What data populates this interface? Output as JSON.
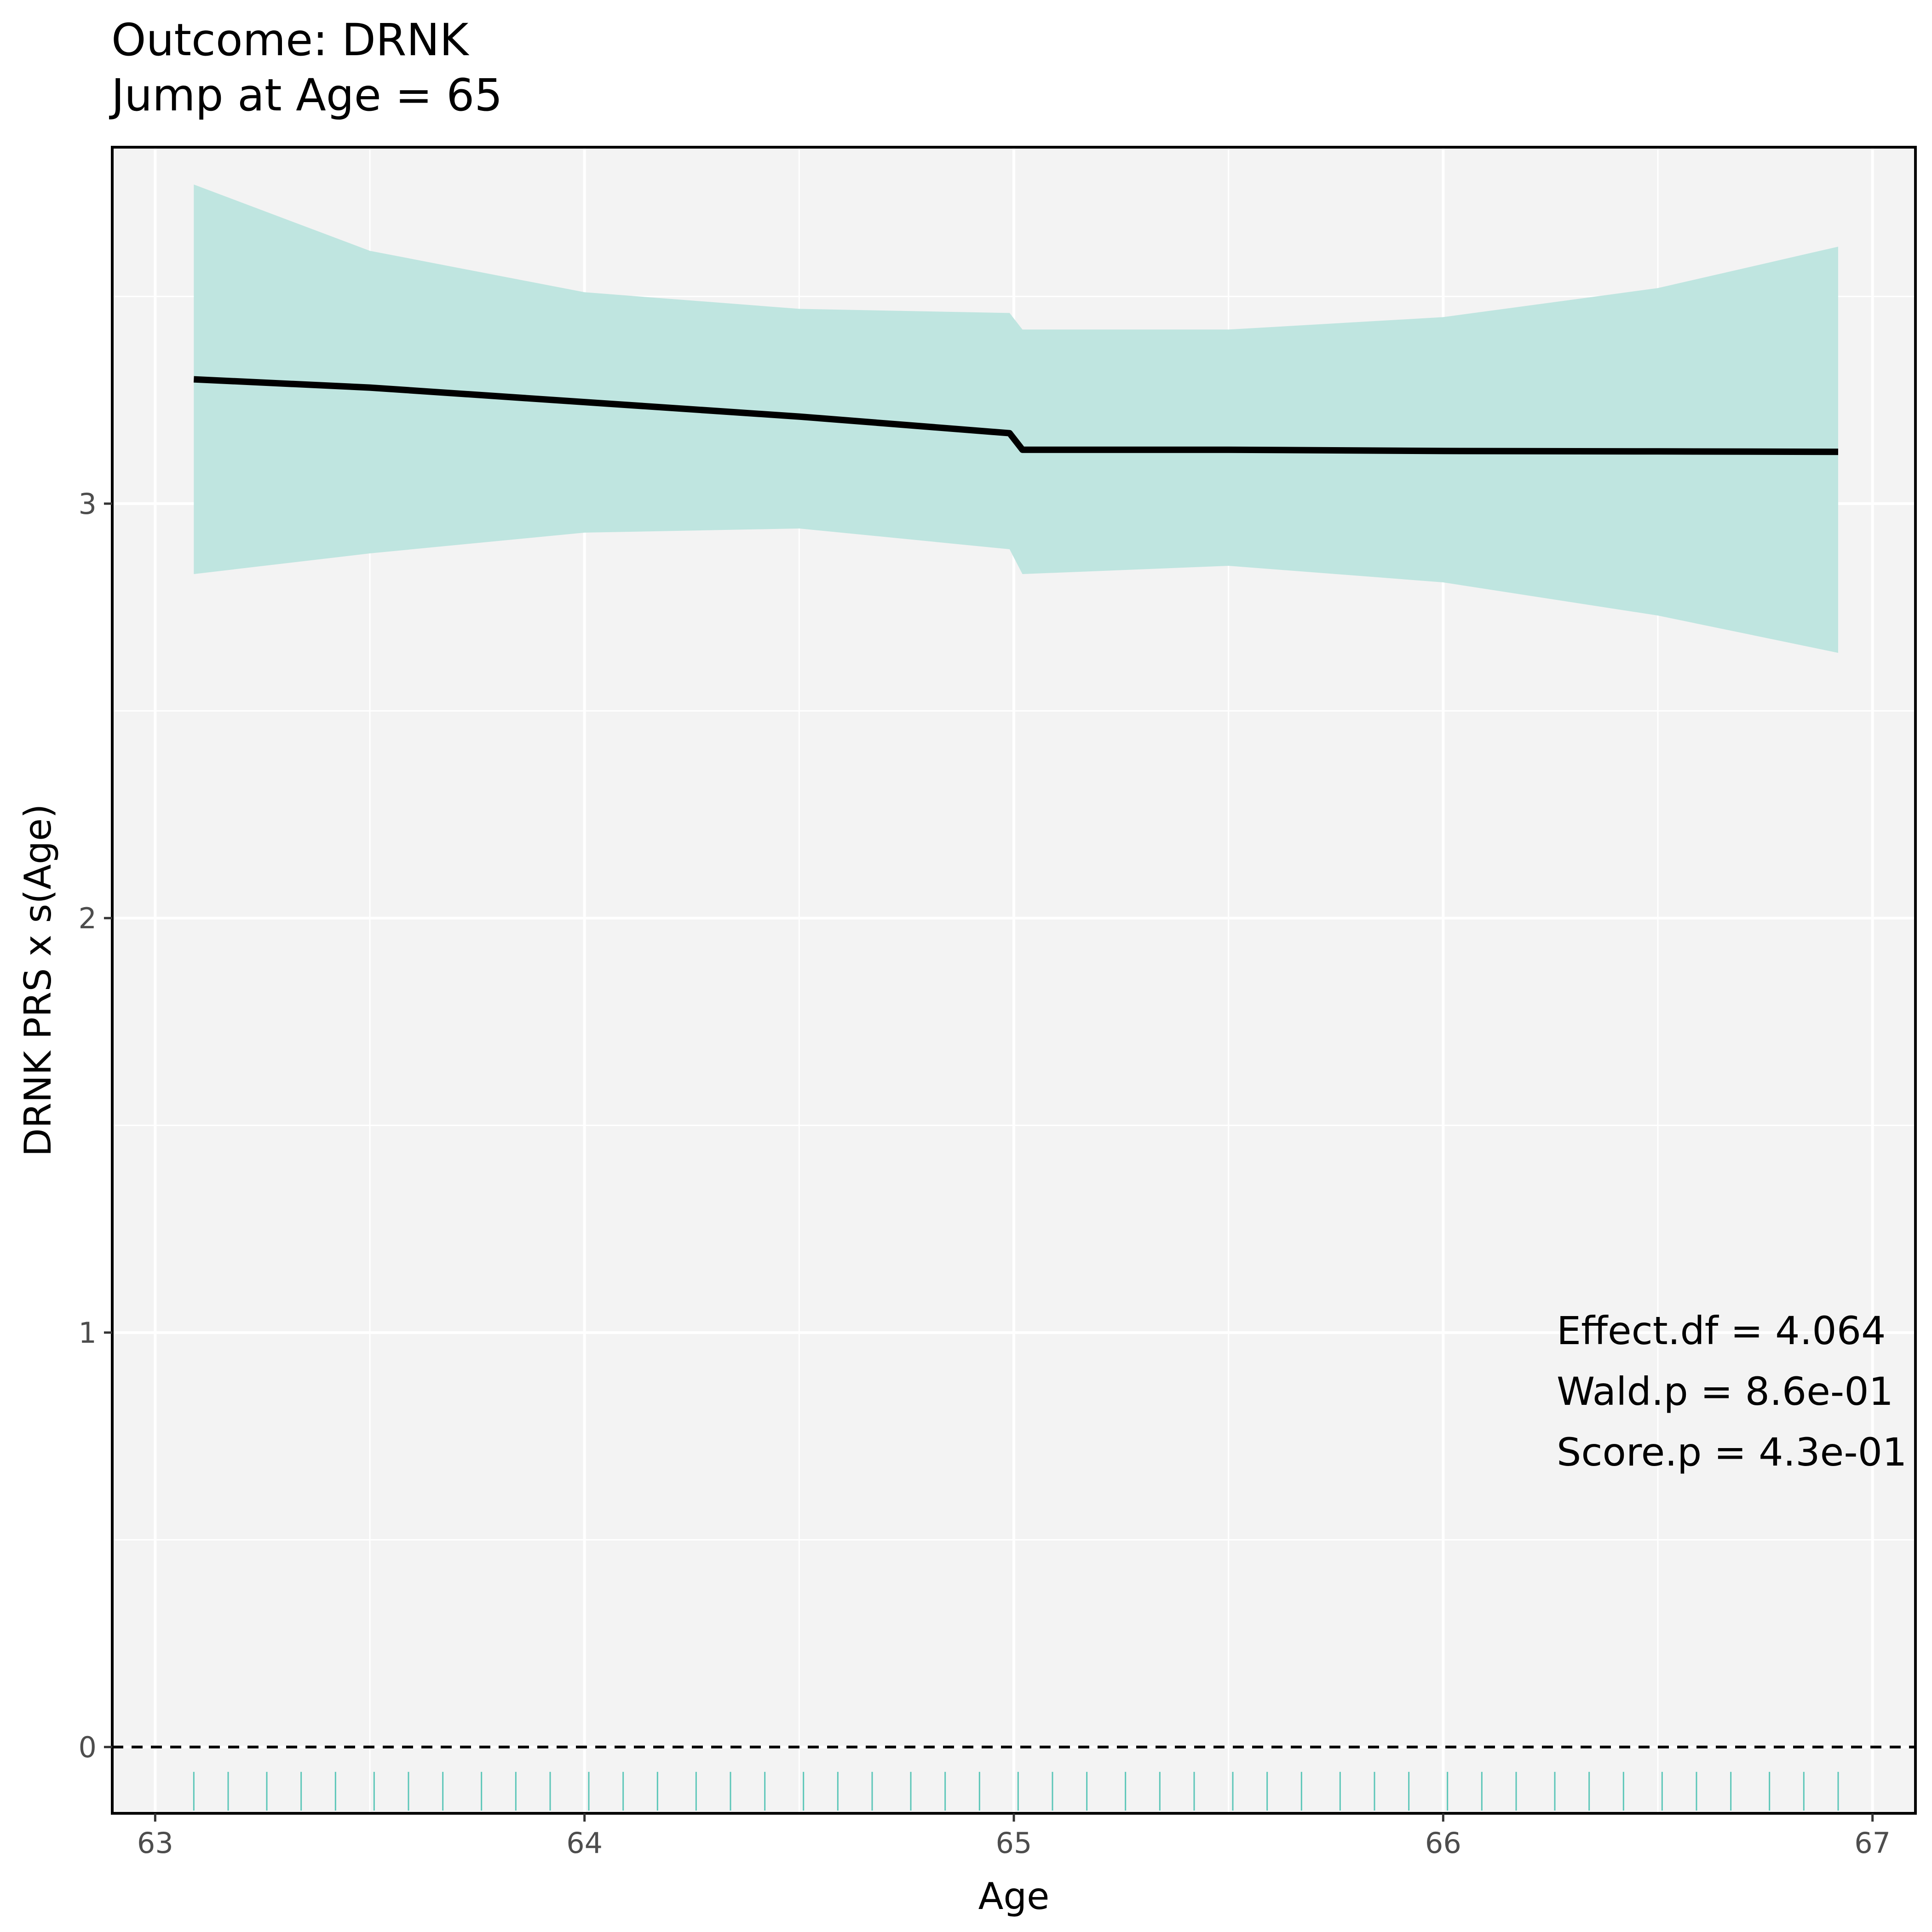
{
  "chart_data": {
    "type": "line",
    "title": "Outcome: DRNK",
    "subtitle": "Jump at Age = 65",
    "xlabel": "Age",
    "ylabel": "DRNK PRS x s(Age)",
    "xlim": [
      62.9,
      67.1
    ],
    "ylim": [
      -0.16,
      3.86
    ],
    "x_ticks": [
      "63",
      "64",
      "65",
      "66",
      "67"
    ],
    "y_ticks": [
      "0",
      "1",
      "2",
      "3"
    ],
    "grid": true,
    "reference_line": {
      "y": 0,
      "style": "dashed",
      "color": "#000000"
    },
    "colors": {
      "panel": "#f3f3f3",
      "grid": "#ffffff",
      "ribbon": "#bfe5e0",
      "line": "#000000",
      "rug": "#5cc6b8"
    },
    "jump_at": 65,
    "fit": {
      "x": [
        63.09,
        63.5,
        64.0,
        64.5,
        64.99,
        65.02,
        65.5,
        66.0,
        66.5,
        66.92
      ],
      "y": [
        3.3,
        3.28,
        3.245,
        3.21,
        3.17,
        3.13,
        3.13,
        3.127,
        3.126,
        3.125
      ],
      "lo": [
        2.83,
        2.88,
        2.93,
        2.94,
        2.89,
        2.83,
        2.85,
        2.81,
        2.73,
        2.64
      ],
      "hi": [
        3.77,
        3.61,
        3.51,
        3.47,
        3.46,
        3.42,
        3.42,
        3.45,
        3.52,
        3.62
      ]
    },
    "rug_x": [
      63.09,
      63.17,
      63.26,
      63.34,
      63.42,
      63.51,
      63.59,
      63.67,
      63.76,
      63.84,
      63.92,
      64.01,
      64.09,
      64.17,
      64.26,
      64.34,
      64.42,
      64.51,
      64.59,
      64.67,
      64.76,
      64.84,
      64.92,
      65.01,
      65.09,
      65.17,
      65.26,
      65.34,
      65.42,
      65.51,
      65.59,
      65.67,
      65.76,
      65.84,
      65.92,
      66.01,
      66.09,
      66.17,
      66.26,
      66.34,
      66.42,
      66.51,
      66.59,
      66.67,
      66.76,
      66.84,
      66.92
    ],
    "annotations": [
      "Effect.df = 4.064",
      "Wald.p = 8.6e-01",
      "Score.p = 4.3e-01"
    ]
  }
}
